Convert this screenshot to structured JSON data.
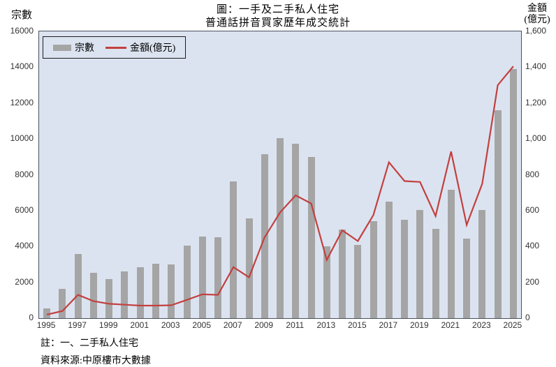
{
  "title": {
    "line1": "圖：一手及二手私人住宅",
    "line2": "普通話拼音買家歷年成交統計"
  },
  "axes": {
    "left_title": "宗數",
    "right_title_line1": "金額",
    "right_title_line2": "(億元)",
    "left_ticks": [
      "0",
      "2000",
      "4000",
      "6000",
      "8000",
      "10000",
      "12000",
      "14000",
      "16000"
    ],
    "right_ticks": [
      "0",
      "200",
      "400",
      "600",
      "800",
      "1,000",
      "1,200",
      "1,400",
      "1,600"
    ]
  },
  "legend": {
    "bar_label": "宗數",
    "line_label": "金額(億元)"
  },
  "footnotes": {
    "note": "註：一、二手私人住宅",
    "source": "資料來源:中原樓市大數據"
  },
  "colors": {
    "plot_bg": "#dce3f0",
    "bar": "#a5a5a5",
    "line": "#c2403f",
    "frame": "#49525f"
  },
  "chart_data": {
    "type": "bar",
    "subtype": "combo_bar_line",
    "title": "圖：一手及二手私人住宅 普通話拼音買家歷年成交統計",
    "categories": [
      1995,
      1996,
      1997,
      1998,
      1999,
      2000,
      2001,
      2002,
      2003,
      2004,
      2005,
      2006,
      2007,
      2008,
      2009,
      2010,
      2011,
      2012,
      2013,
      2014,
      2015,
      2016,
      2017,
      2018,
      2019,
      2020,
      2021,
      2022,
      2023,
      2024,
      2025
    ],
    "series": [
      {
        "name": "宗數",
        "type": "bar",
        "axis": "left",
        "values": [
          550,
          1650,
          3600,
          2550,
          2200,
          2600,
          2850,
          3050,
          3000,
          4050,
          4550,
          4500,
          7650,
          5550,
          9150,
          10050,
          9750,
          9000,
          4000,
          4950,
          4100,
          5400,
          6500,
          5500,
          6050,
          5000,
          7150,
          4450,
          6050,
          11600,
          13900
        ]
      },
      {
        "name": "金額(億元)",
        "type": "line",
        "axis": "right",
        "values": [
          20,
          40,
          130,
          95,
          80,
          75,
          70,
          70,
          72,
          102,
          133,
          130,
          285,
          228,
          450,
          590,
          685,
          640,
          325,
          490,
          430,
          575,
          870,
          765,
          760,
          570,
          930,
          520,
          750,
          1300,
          1405
        ]
      }
    ],
    "y_left": {
      "label": "宗數",
      "min": 0,
      "max": 16000,
      "step": 2000
    },
    "y_right": {
      "label": "金額(億元)",
      "min": 0,
      "max": 1600,
      "step": 200
    },
    "x_tick_labels": [
      "1995",
      "1997",
      "1999",
      "2001",
      "2003",
      "2005",
      "2007",
      "2009",
      "2011",
      "2013",
      "2015",
      "2017",
      "2019",
      "2021",
      "2023",
      "2025"
    ],
    "legend_position": "top-left",
    "grid": false
  }
}
